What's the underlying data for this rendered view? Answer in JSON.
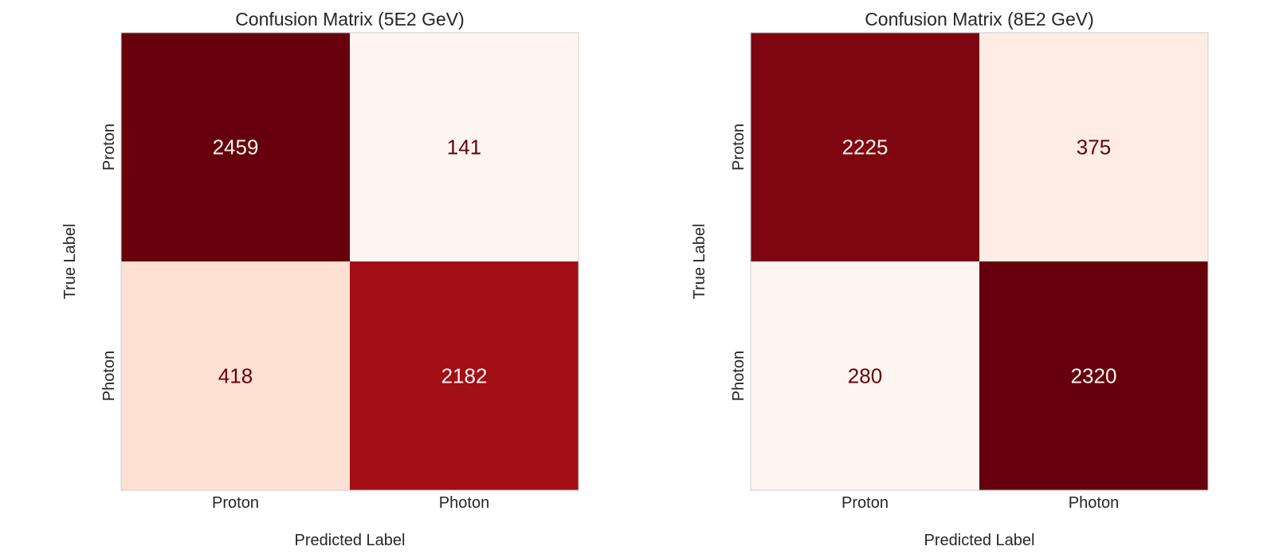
{
  "chart_data": [
    {
      "type": "heatmap",
      "title": "Confusion Matrix (5E2 GeV)",
      "xlabel": "Predicted Label",
      "ylabel": "True Label",
      "x_categories": [
        "Proton",
        "Photon"
      ],
      "y_categories": [
        "Proton",
        "Photon"
      ],
      "values": [
        [
          2459,
          141
        ],
        [
          418,
          2182
        ]
      ],
      "colormap": "Reds",
      "grid": false,
      "colorbar": false
    },
    {
      "type": "heatmap",
      "title": "Confusion Matrix (8E2 GeV)",
      "xlabel": "Predicted Label",
      "ylabel": "True Label",
      "x_categories": [
        "Proton",
        "Photon"
      ],
      "y_categories": [
        "Proton",
        "Photon"
      ],
      "values": [
        [
          2225,
          375
        ],
        [
          280,
          2320
        ]
      ],
      "colormap": "Reds",
      "grid": false,
      "colorbar": false
    }
  ],
  "colors": {
    "reds_low": "#fff5f0",
    "reds_high": "#67000d",
    "text_dark": "#67000d",
    "text_light": "#fff5f0",
    "frame": "#cccccc"
  }
}
